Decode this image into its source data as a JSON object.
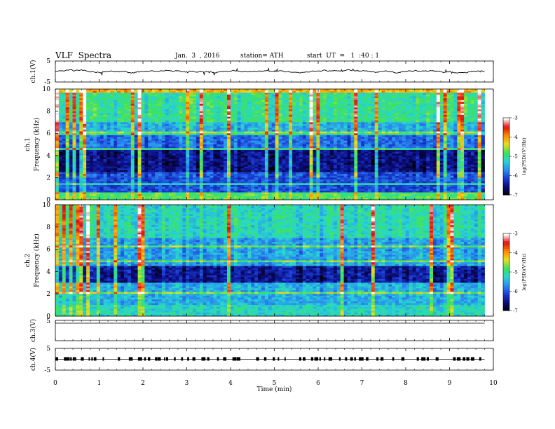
{
  "header": {
    "title": "VLF  Spectra",
    "date": "Jan.  3  , 2016",
    "station": "station= ATH",
    "start": "start  UT  =   1  :40 : 1"
  },
  "chart_data": [
    {
      "type": "line",
      "ylabel": "ch.1(V)",
      "ylim": [
        -5,
        5
      ],
      "y_ticks": [
        "5",
        "-5"
      ],
      "description_values": {
        "x_range_min": [
          0,
          9.8
        ],
        "level_V": 0
      }
    },
    {
      "type": "heatmap",
      "ylabel": "ch.1\nFrequency  (kHz)",
      "ylabel_lines": [
        "ch.1",
        "Frequency  (kHz)"
      ],
      "xlim": [
        0,
        10
      ],
      "ylim": [
        0,
        10
      ],
      "y_ticks": [
        "0",
        "2",
        "4",
        "6",
        "8",
        "10"
      ],
      "colorbar": {
        "label": "log(PSD)(V²/Hz)",
        "range": [
          -7,
          -3
        ],
        "ticks": [
          "-3",
          "-4",
          "-5",
          "-6",
          "-7"
        ]
      }
    },
    {
      "type": "heatmap",
      "ylabel": "ch.2\nFrequency  (kHz)",
      "ylabel_lines": [
        "ch.2",
        "Frequency  (kHz)"
      ],
      "xlim": [
        0,
        10
      ],
      "ylim": [
        0,
        10
      ],
      "y_ticks": [
        "0",
        "2",
        "4",
        "6",
        "8",
        "10"
      ],
      "colorbar": {
        "label": "log(PSD)(V²/Hz)",
        "range": [
          -7,
          -3
        ],
        "ticks": [
          "-3",
          "-4",
          "-5",
          "-6",
          "-7"
        ]
      }
    },
    {
      "type": "line",
      "ylabel": "ch.3(V)",
      "ylim": [
        -5,
        5
      ],
      "y_ticks": [
        "5"
      ]
    },
    {
      "type": "line",
      "ylabel": "ch.4(V)",
      "ylim": [
        -5,
        5
      ],
      "y_ticks": [
        "5",
        "-5"
      ]
    }
  ],
  "x_axis": {
    "label": "Time  (min)",
    "ticks": [
      "0",
      "1",
      "2",
      "3",
      "4",
      "5",
      "6",
      "7",
      "8",
      "9",
      "10"
    ],
    "range": [
      0,
      10
    ]
  },
  "palette": {
    "colormap": [
      "#000000",
      "#0b0b7a",
      "#1a3dd6",
      "#2a8ff0",
      "#27d6d0",
      "#3ee35a",
      "#e8e020",
      "#ff8a00",
      "#e01010",
      "#ffffff"
    ]
  }
}
